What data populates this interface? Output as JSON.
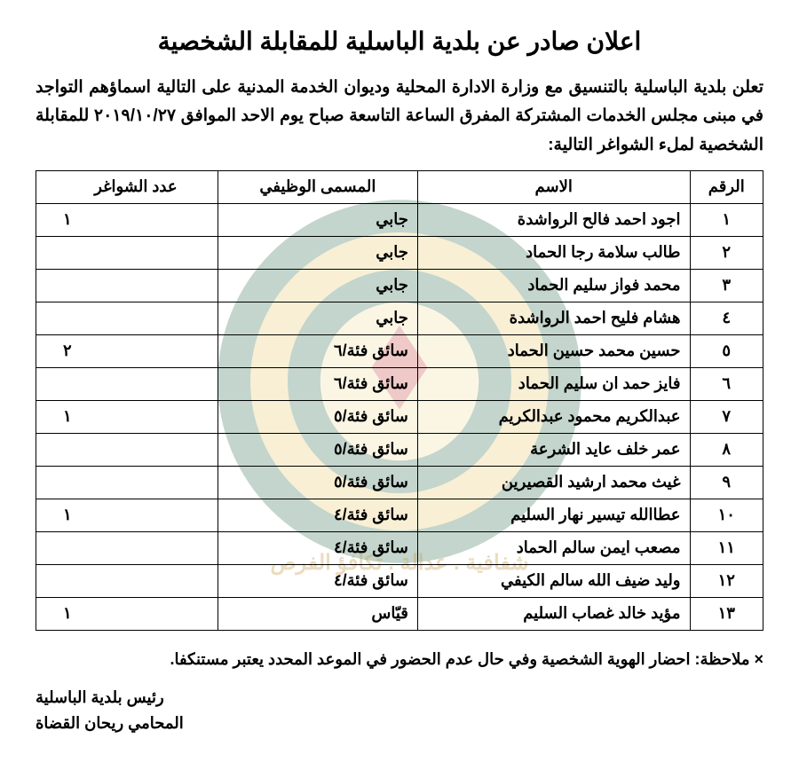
{
  "title": "اعلان صادر عن بلدية الباسلية للمقابلة الشخصية",
  "intro": "تعلن بلدية الباسلية بالتنسيق مع وزارة الادارة المحلية وديوان الخدمة المدنية على التالية اسماؤهم التواجد في مبنى مجلس الخدمات المشتركة المفرق الساعة التاسعة صباح يوم الاحد الموافق ٢٠١٩/١٠/٢٧ للمقابلة الشخصية لملء الشواغر التالية:",
  "table": {
    "headers": {
      "num": "الرقم",
      "name": "الاسم",
      "job": "المسمى الوظيفي",
      "vac": "عدد الشواغر"
    },
    "rows": [
      {
        "num": "١",
        "name": "اجود احمد فالح الرواشدة",
        "job": "جابي",
        "vac": "١"
      },
      {
        "num": "٢",
        "name": "طالب سلامة رجا الحماد",
        "job": "جابي",
        "vac": ""
      },
      {
        "num": "٣",
        "name": "محمد فواز سليم الحماد",
        "job": "جابي",
        "vac": ""
      },
      {
        "num": "٤",
        "name": "هشام فليح احمد الرواشدة",
        "job": "جابي",
        "vac": ""
      },
      {
        "num": "٥",
        "name": "حسين محمد حسين الحماد",
        "job": "سائق فئة/٦",
        "vac": "٢"
      },
      {
        "num": "٦",
        "name": "فايز حمد ان سليم الحماد",
        "job": "سائق فئة/٦",
        "vac": ""
      },
      {
        "num": "٧",
        "name": "عبدالكريم محمود عبدالكريم",
        "job": "سائق فئة/٥",
        "vac": "١"
      },
      {
        "num": "٨",
        "name": "عمر خلف عايد الشرعة",
        "job": "سائق فئة/٥",
        "vac": ""
      },
      {
        "num": "٩",
        "name": "غيث محمد ارشيد القصيرين",
        "job": "سائق فئة/٥",
        "vac": ""
      },
      {
        "num": "١٠",
        "name": "عطاالله تيسير نهار السليم",
        "job": "سائق فئة/٤",
        "vac": "١"
      },
      {
        "num": "١١",
        "name": "مصعب ايمن سالم الحماد",
        "job": "سائق فئة/٤",
        "vac": ""
      },
      {
        "num": "١٢",
        "name": "وليد ضيف الله سالم الكيفي",
        "job": "سائق فئة/٤",
        "vac": ""
      },
      {
        "num": "١٣",
        "name": "مؤيد خالد غصاب السليم",
        "job": "قيّاس",
        "vac": "١"
      }
    ]
  },
  "note": "× ملاحظة: احضار الهوية الشخصية وفي حال عدم الحضور في الموعد المحدد يعتبر مستنكفا.",
  "signature": {
    "line1": "رئيس بلدية الباسلية",
    "line2": "المحامي ريحان القضاة"
  },
  "watermark": {
    "tagline": "شفافية . عدالة . تكافؤ الفرص",
    "colors": {
      "outer": "#2a6a4a",
      "ring": "#e8c96a",
      "red": "#c5403a",
      "inner": "#f2dfa0"
    }
  }
}
